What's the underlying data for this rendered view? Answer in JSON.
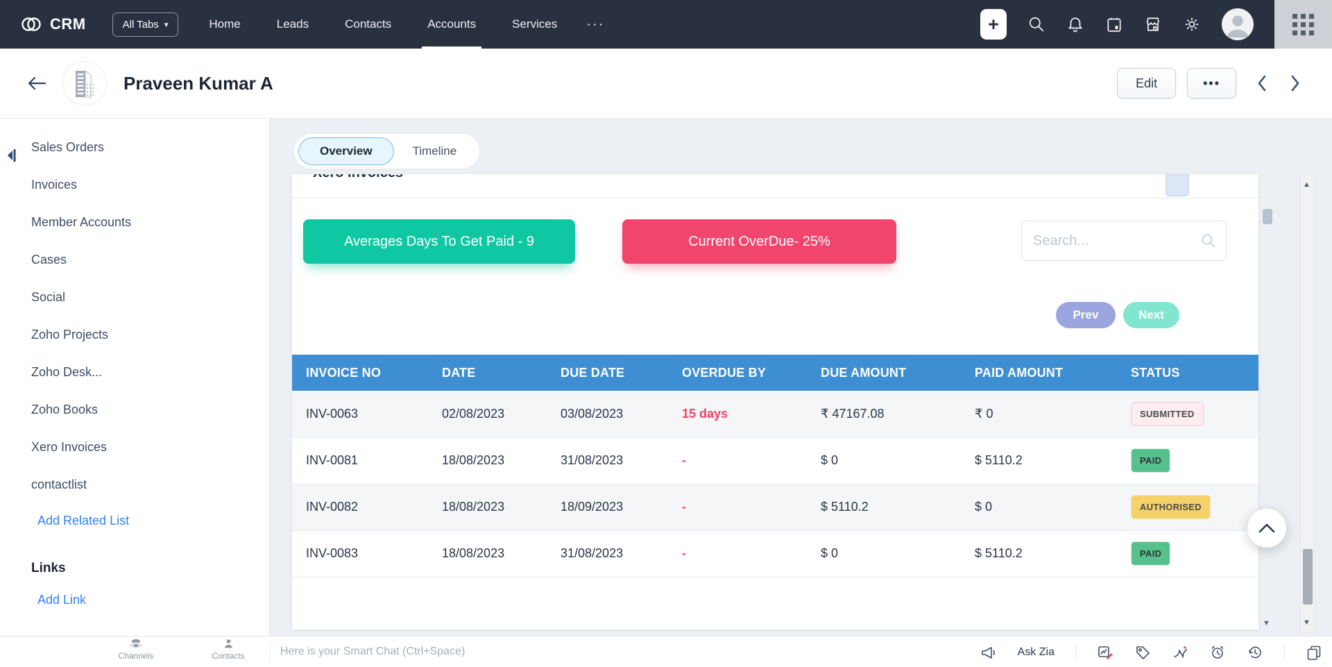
{
  "topnav": {
    "brand": "CRM",
    "all_tabs_label": "All Tabs",
    "items": [
      "Home",
      "Leads",
      "Contacts",
      "Accounts",
      "Services"
    ],
    "active_item": "Accounts",
    "more_label": "···",
    "right_icons": [
      "plus-icon",
      "search-icon",
      "bell-icon",
      "calendar-icon",
      "marketplace-icon",
      "settings-icon",
      "avatar",
      "apps-grid-icon"
    ]
  },
  "record_header": {
    "title": "Praveen Kumar A",
    "edit_label": "Edit",
    "more_label": "•••"
  },
  "sidebar": {
    "items": [
      "Sales Orders",
      "Invoices",
      "Member Accounts",
      "Cases",
      "Social",
      "Zoho Projects",
      "Zoho Desk...",
      "Zoho Books",
      "Xero Invoices",
      "contactlist"
    ],
    "add_related_list_label": "Add Related List",
    "links_header": "Links",
    "add_link_label": "Add Link"
  },
  "tabs": {
    "items": [
      "Overview",
      "Timeline"
    ],
    "active": "Overview"
  },
  "widget": {
    "title": "Xero Invoices",
    "avg_days_button": "Averages Days To Get Paid - 9",
    "overdue_button": "Current OverDue- 25%",
    "search_placeholder": "Search...",
    "prev_label": "Prev",
    "next_label": "Next"
  },
  "table": {
    "headers": [
      "INVOICE NO",
      "DATE",
      "DUE DATE",
      "OVERDUE BY",
      "DUE AMOUNT",
      "PAID AMOUNT",
      "STATUS"
    ],
    "keys": [
      "invoice_no",
      "date",
      "due_date",
      "overdue_by",
      "due_amount",
      "paid_amount",
      "status"
    ],
    "rows": [
      {
        "invoice_no": "INV-0063",
        "date": "02/08/2023",
        "due_date": "03/08/2023",
        "overdue_by": "15 days",
        "due_amount": "₹ 47167.08",
        "paid_amount": "₹ 0",
        "status": "SUBMITTED"
      },
      {
        "invoice_no": "INV-0081",
        "date": "18/08/2023",
        "due_date": "31/08/2023",
        "overdue_by": "-",
        "due_amount": "$ 0",
        "paid_amount": "$ 5110.2",
        "status": "PAID"
      },
      {
        "invoice_no": "INV-0082",
        "date": "18/08/2023",
        "due_date": "18/09/2023",
        "overdue_by": "-",
        "due_amount": "$ 5110.2",
        "paid_amount": "$ 0",
        "status": "AUTHORISED"
      },
      {
        "invoice_no": "INV-0083",
        "date": "18/08/2023",
        "due_date": "31/08/2023",
        "overdue_by": "-",
        "due_amount": "$ 0",
        "paid_amount": "$ 5110.2",
        "status": "PAID"
      }
    ]
  },
  "chatbar": {
    "channels_label": "Channels",
    "contacts_label": "Contacts",
    "input_placeholder": "Here is your Smart Chat (Ctrl+Space)",
    "ask_zia_label": "Ask Zia",
    "right_icons": [
      "megaphone-icon",
      "chart-edit-icon",
      "tag-icon",
      "zia-icon",
      "alarm-clock-icon",
      "history-icon",
      "sheets-icon"
    ]
  },
  "colors": {
    "topnav_bg": "#293040",
    "table_header_blue": "#3e8ed3",
    "link_blue": "#3182f6",
    "green_button": "#10c7a4",
    "red_button": "#f0456c",
    "prev_button": "#9ba5e0",
    "next_button": "#81e5d0",
    "overdue_text": "#f0446b",
    "paid_badge": "#56c18c",
    "authorised_badge": "#f5d269",
    "submitted_badge_bg": "#fdedf0",
    "active_tab_bg": "#e7f5fd"
  }
}
